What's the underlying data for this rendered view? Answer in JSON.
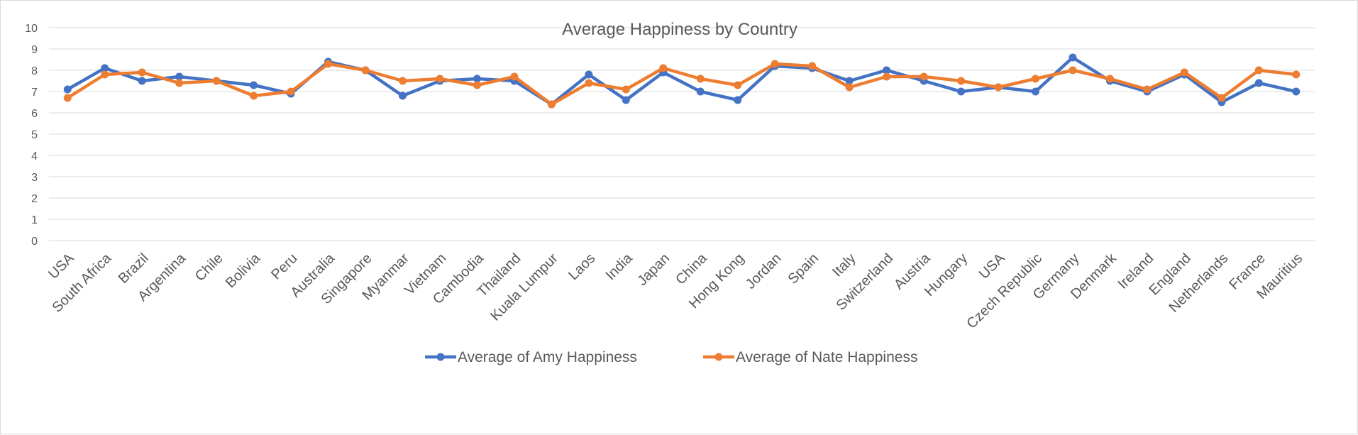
{
  "chart_data": {
    "type": "line",
    "title": "Average Happiness by Country",
    "xlabel": "",
    "ylabel": "",
    "ylim": [
      0,
      10
    ],
    "yticks": [
      0,
      1,
      2,
      3,
      4,
      5,
      6,
      7,
      8,
      9,
      10
    ],
    "grid": true,
    "legend_position": "bottom",
    "categories": [
      "USA",
      "South Africa",
      "Brazil",
      "Argentina",
      "Chile",
      "Bolivia",
      "Peru",
      "Australia",
      "Singapore",
      "Myanmar",
      "Vietnam",
      "Cambodia",
      "Thailand",
      "Kuala Lumpur",
      "Laos",
      "India",
      "Japan",
      "China",
      "Hong Kong",
      "Jordan",
      "Spain",
      "Italy",
      "Switzerland",
      "Austria",
      "Hungary",
      "USA",
      "Czech Republic",
      "Germany",
      "Denmark",
      "Ireland",
      "England",
      "Netherlands",
      "France",
      "Mauritius"
    ],
    "series": [
      {
        "name": "Average of Amy Happiness",
        "color": "#4472c4",
        "values": [
          7.1,
          8.1,
          7.5,
          7.7,
          7.5,
          7.3,
          6.9,
          8.4,
          8.0,
          6.8,
          7.5,
          7.6,
          7.5,
          6.4,
          7.8,
          6.6,
          7.9,
          7.0,
          6.6,
          8.2,
          8.1,
          7.5,
          8.0,
          7.5,
          7.0,
          7.2,
          7.0,
          8.6,
          7.5,
          7.0,
          7.8,
          6.5,
          7.4,
          7.0
        ]
      },
      {
        "name": "Average of Nate Happiness",
        "color": "#ed7d31",
        "values": [
          6.7,
          7.8,
          7.9,
          7.4,
          7.5,
          6.8,
          7.0,
          8.3,
          8.0,
          7.5,
          7.6,
          7.3,
          7.7,
          6.4,
          7.4,
          7.1,
          8.1,
          7.6,
          7.3,
          8.3,
          8.2,
          7.2,
          7.7,
          7.7,
          7.5,
          7.2,
          7.6,
          8.0,
          7.6,
          7.1,
          7.9,
          6.7,
          8.0,
          7.8
        ]
      }
    ]
  }
}
